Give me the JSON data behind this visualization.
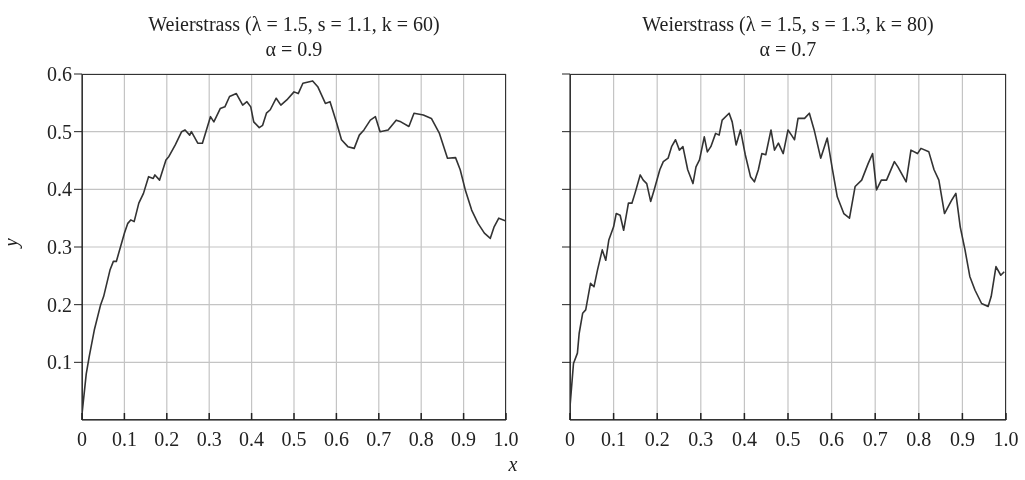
{
  "chart_data": [
    {
      "type": "line",
      "title": "Weierstrass (λ = 1.5, s = 1.1, k = 60)",
      "subtitle": "α = 0.9",
      "xlabel": "x",
      "ylabel": "y",
      "xlim": [
        0,
        1
      ],
      "ylim": [
        0,
        0.6
      ],
      "xticks": [
        0,
        0.1,
        0.2,
        0.3,
        0.4,
        0.5,
        0.6,
        0.7,
        0.8,
        0.9,
        {
          "value": 1,
          "label": "1.0"
        }
      ],
      "yticks": [
        0.1,
        0.2,
        0.3,
        0.4,
        0.5,
        0.6
      ],
      "grid": true,
      "series": [
        {
          "color": "#333333",
          "x": [
            0,
            0.01,
            0.017,
            0.029,
            0.044,
            0.051,
            0.066,
            0.074,
            0.081,
            0.1,
            0.108,
            0.115,
            0.123,
            0.134,
            0.145,
            0.157,
            0.168,
            0.172,
            0.183,
            0.198,
            0.205,
            0.22,
            0.235,
            0.243,
            0.254,
            0.258,
            0.273,
            0.284,
            0.303,
            0.311,
            0.326,
            0.337,
            0.348,
            0.364,
            0.379,
            0.389,
            0.398,
            0.405,
            0.418,
            0.426,
            0.435,
            0.444,
            0.458,
            0.469,
            0.483,
            0.5,
            0.51,
            0.521,
            0.544,
            0.556,
            0.574,
            0.585,
            0.601,
            0.612,
            0.627,
            0.642,
            0.654,
            0.665,
            0.68,
            0.692,
            0.703,
            0.722,
            0.741,
            0.752,
            0.771,
            0.783,
            0.805,
            0.824,
            0.843,
            0.862,
            0.881,
            0.892,
            0.904,
            0.919,
            0.934,
            0.949,
            0.963,
            0.972,
            0.983,
            1
          ],
          "values": [
            0.01,
            0.08,
            0.11,
            0.156,
            0.2,
            0.214,
            0.26,
            0.275,
            0.275,
            0.324,
            0.341,
            0.347,
            0.344,
            0.376,
            0.393,
            0.422,
            0.419,
            0.425,
            0.416,
            0.451,
            0.457,
            0.477,
            0.5,
            0.503,
            0.494,
            0.5,
            0.48,
            0.48,
            0.526,
            0.517,
            0.54,
            0.543,
            0.561,
            0.566,
            0.546,
            0.552,
            0.543,
            0.517,
            0.507,
            0.511,
            0.532,
            0.538,
            0.558,
            0.546,
            0.555,
            0.569,
            0.566,
            0.584,
            0.588,
            0.578,
            0.549,
            0.552,
            0.514,
            0.486,
            0.474,
            0.471,
            0.494,
            0.503,
            0.52,
            0.526,
            0.5,
            0.503,
            0.52,
            0.517,
            0.509,
            0.532,
            0.529,
            0.523,
            0.497,
            0.454,
            0.455,
            0.434,
            0.399,
            0.364,
            0.341,
            0.324,
            0.315,
            0.335,
            0.35,
            0.345
          ]
        }
      ]
    },
    {
      "type": "line",
      "title": "Weierstrass (λ = 1.5, s = 1.3, k = 80)",
      "subtitle": "α = 0.7",
      "xlim": [
        0,
        1
      ],
      "ylim": [
        0,
        0.6
      ],
      "xticks": [
        0,
        0.1,
        0.2,
        0.3,
        0.4,
        0.5,
        0.6,
        0.7,
        0.8,
        0.9,
        {
          "value": 1,
          "label": "1.0"
        }
      ],
      "yticks": [
        0.1,
        0.2,
        0.3,
        0.4,
        0.5,
        0.6
      ],
      "grid": true,
      "tick_labels": "x",
      "series": [
        {
          "color": "#333333",
          "x": [
            0,
            0.008,
            0.017,
            0.021,
            0.029,
            0.036,
            0.047,
            0.055,
            0.063,
            0.074,
            0.082,
            0.089,
            0.1,
            0.106,
            0.115,
            0.123,
            0.134,
            0.142,
            0.149,
            0.161,
            0.168,
            0.176,
            0.185,
            0.193,
            0.206,
            0.214,
            0.225,
            0.233,
            0.242,
            0.251,
            0.259,
            0.27,
            0.282,
            0.289,
            0.297,
            0.308,
            0.315,
            0.323,
            0.334,
            0.342,
            0.349,
            0.365,
            0.372,
            0.381,
            0.391,
            0.402,
            0.414,
            0.423,
            0.432,
            0.44,
            0.449,
            0.461,
            0.469,
            0.478,
            0.489,
            0.5,
            0.508,
            0.515,
            0.523,
            0.538,
            0.549,
            0.56,
            0.575,
            0.59,
            0.602,
            0.613,
            0.628,
            0.641,
            0.654,
            0.669,
            0.684,
            0.694,
            0.703,
            0.714,
            0.726,
            0.744,
            0.752,
            0.771,
            0.782,
            0.797,
            0.805,
            0.823,
            0.835,
            0.846,
            0.859,
            0.876,
            0.885,
            0.895,
            0.906,
            0.917,
            0.929,
            0.944,
            0.959,
            0.966,
            0.977,
            0.988,
            0.996
          ],
          "values": [
            0.023,
            0.098,
            0.116,
            0.15,
            0.185,
            0.191,
            0.237,
            0.231,
            0.26,
            0.295,
            0.277,
            0.312,
            0.335,
            0.358,
            0.355,
            0.329,
            0.376,
            0.376,
            0.393,
            0.425,
            0.416,
            0.41,
            0.379,
            0.399,
            0.434,
            0.448,
            0.454,
            0.474,
            0.486,
            0.468,
            0.474,
            0.434,
            0.41,
            0.439,
            0.451,
            0.491,
            0.465,
            0.474,
            0.497,
            0.494,
            0.52,
            0.532,
            0.517,
            0.477,
            0.503,
            0.46,
            0.422,
            0.413,
            0.434,
            0.462,
            0.46,
            0.503,
            0.468,
            0.48,
            0.462,
            0.503,
            0.494,
            0.486,
            0.523,
            0.523,
            0.532,
            0.503,
            0.454,
            0.489,
            0.434,
            0.387,
            0.358,
            0.35,
            0.405,
            0.416,
            0.445,
            0.462,
            0.399,
            0.416,
            0.416,
            0.448,
            0.439,
            0.413,
            0.468,
            0.462,
            0.471,
            0.465,
            0.434,
            0.416,
            0.358,
            0.382,
            0.393,
            0.335,
            0.295,
            0.249,
            0.225,
            0.202,
            0.197,
            0.214,
            0.266,
            0.251,
            0.257
          ]
        }
      ]
    }
  ]
}
